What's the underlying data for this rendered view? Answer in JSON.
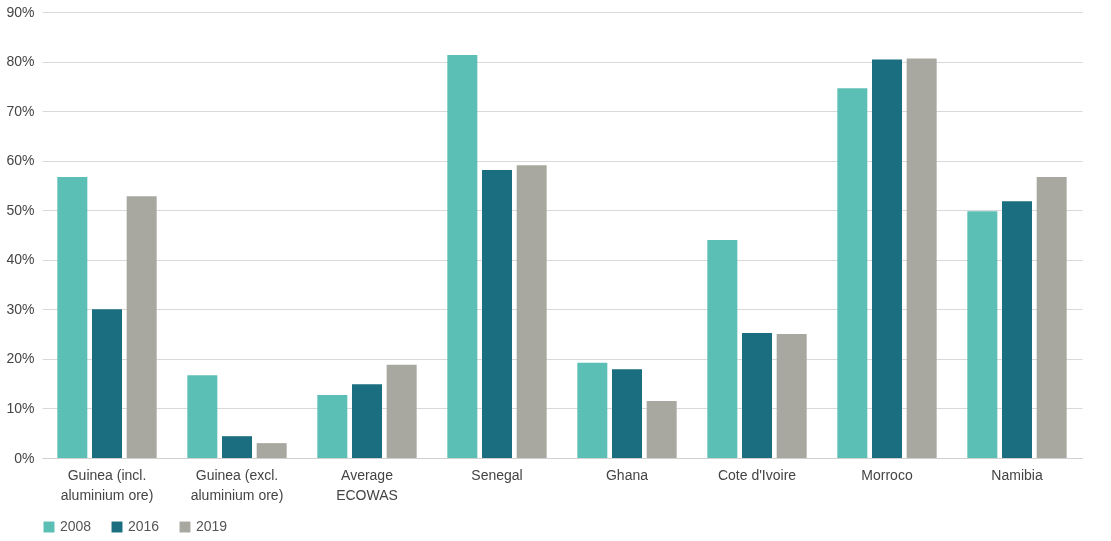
{
  "chart_data": {
    "type": "bar",
    "categories": [
      "Guinea (incl.\naluminium ore)",
      "Guinea (excl.\naluminium ore)",
      "Average\nECOWAS",
      "Senegal",
      "Ghana",
      "Cote d'Ivoire",
      "Morroco",
      "Namibia"
    ],
    "series": [
      {
        "name": "2008",
        "color": "#5bbfb5",
        "values": [
          56.7,
          16.7,
          12.7,
          81.3,
          19.2,
          44.0,
          74.6,
          49.8
        ]
      },
      {
        "name": "2016",
        "color": "#1a6e80",
        "values": [
          30.0,
          4.4,
          14.9,
          58.1,
          17.9,
          25.2,
          80.4,
          51.8
        ]
      },
      {
        "name": "2019",
        "color": "#a8a8a0",
        "values": [
          52.8,
          3.0,
          18.8,
          59.1,
          11.5,
          25.0,
          80.6,
          56.7
        ]
      }
    ],
    "ylim": [
      0,
      90
    ],
    "yticks": [
      {
        "value": 0,
        "label": "0%"
      },
      {
        "value": 10,
        "label": "10%"
      },
      {
        "value": 20,
        "label": "20%"
      },
      {
        "value": 30,
        "label": "30%"
      },
      {
        "value": 40,
        "label": "40%"
      },
      {
        "value": 50,
        "label": "50%"
      },
      {
        "value": 60,
        "label": "60%"
      },
      {
        "value": 70,
        "label": "70%"
      },
      {
        "value": 80,
        "label": "80%"
      },
      {
        "value": 90,
        "label": "90%"
      }
    ],
    "grid": "y",
    "legend": "bottom"
  }
}
